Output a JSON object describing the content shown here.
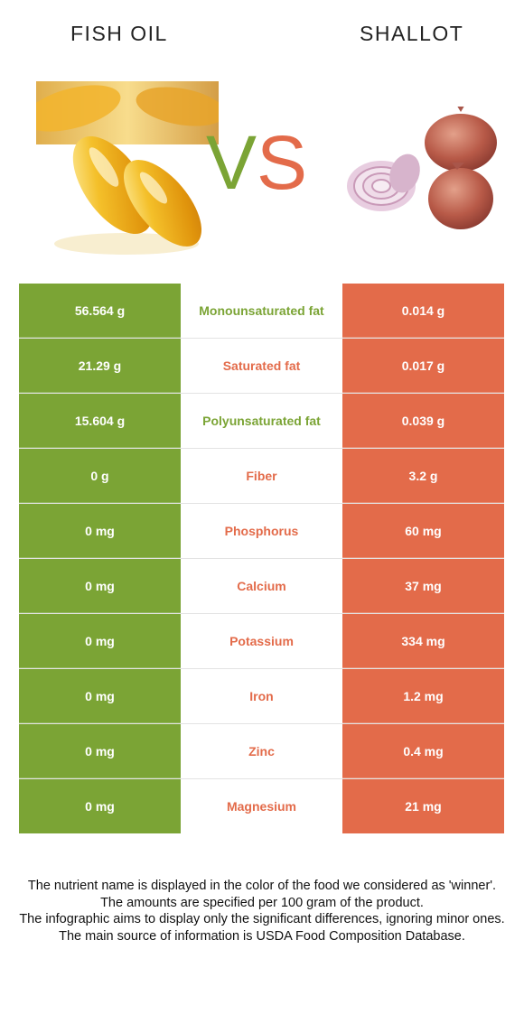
{
  "food_left": {
    "name": "FISH OIL",
    "color": "#7ba435"
  },
  "food_right": {
    "name": "SHALLOT",
    "color": "#e36b4a"
  },
  "vs": {
    "v": "V",
    "s": "S"
  },
  "rows": [
    {
      "nutrient": "Monounsaturated fat",
      "left": "56.564 g",
      "right": "0.014 g",
      "winner": "left"
    },
    {
      "nutrient": "Saturated fat",
      "left": "21.29 g",
      "right": "0.017 g",
      "winner": "right"
    },
    {
      "nutrient": "Polyunsaturated fat",
      "left": "15.604 g",
      "right": "0.039 g",
      "winner": "left"
    },
    {
      "nutrient": "Fiber",
      "left": "0 g",
      "right": "3.2 g",
      "winner": "right"
    },
    {
      "nutrient": "Phosphorus",
      "left": "0 mg",
      "right": "60 mg",
      "winner": "right"
    },
    {
      "nutrient": "Calcium",
      "left": "0 mg",
      "right": "37 mg",
      "winner": "right"
    },
    {
      "nutrient": "Potassium",
      "left": "0 mg",
      "right": "334 mg",
      "winner": "right"
    },
    {
      "nutrient": "Iron",
      "left": "0 mg",
      "right": "1.2 mg",
      "winner": "right"
    },
    {
      "nutrient": "Zinc",
      "left": "0 mg",
      "right": "0.4 mg",
      "winner": "right"
    },
    {
      "nutrient": "Magnesium",
      "left": "0 mg",
      "right": "21 mg",
      "winner": "right"
    }
  ],
  "footer": {
    "line1": "The nutrient name is displayed in the color of the food we considered as 'winner'.",
    "line2": "The amounts are specified per 100 gram of the product.",
    "line3": "The infographic aims to display only the significant differences, ignoring minor ones.",
    "line4": "The main source of information is USDA Food Composition Database."
  }
}
